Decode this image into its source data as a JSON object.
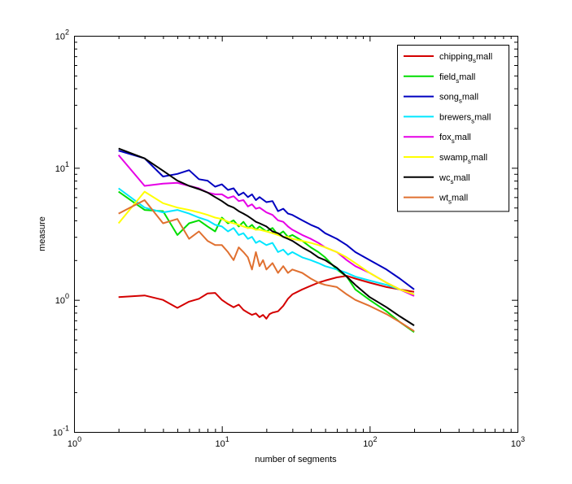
{
  "chart_data": {
    "type": "line",
    "xlabel": "number of segments",
    "ylabel": "measure",
    "xscale": "log",
    "yscale": "log",
    "xlim": [
      1,
      1000
    ],
    "ylim": [
      0.1,
      100
    ],
    "grid": false,
    "legend_position": "top-right",
    "x_ticks": [
      {
        "value": 1,
        "base": "10",
        "exp": "0"
      },
      {
        "value": 10,
        "base": "10",
        "exp": "1"
      },
      {
        "value": 100,
        "base": "10",
        "exp": "2"
      },
      {
        "value": 1000,
        "base": "10",
        "exp": "3"
      }
    ],
    "y_ticks": [
      {
        "value": 0.1,
        "base": "10",
        "exp": "-1"
      },
      {
        "value": 1,
        "base": "10",
        "exp": "0"
      },
      {
        "value": 10,
        "base": "10",
        "exp": "1"
      },
      {
        "value": 100,
        "base": "10",
        "exp": "2"
      }
    ],
    "series": [
      {
        "name": "chipping_small",
        "label_main": "chipping",
        "label_sub": "s",
        "label_rest": "mall",
        "color": "#d40000",
        "points": [
          [
            2,
            1.05
          ],
          [
            3,
            1.08
          ],
          [
            4,
            1.0
          ],
          [
            5,
            0.87
          ],
          [
            6,
            0.97
          ],
          [
            7,
            1.02
          ],
          [
            8,
            1.12
          ],
          [
            9,
            1.13
          ],
          [
            10,
            1.0
          ],
          [
            11,
            0.93
          ],
          [
            12,
            0.88
          ],
          [
            13,
            0.92
          ],
          [
            14,
            0.84
          ],
          [
            15,
            0.8
          ],
          [
            16,
            0.77
          ],
          [
            17,
            0.79
          ],
          [
            18,
            0.74
          ],
          [
            19,
            0.77
          ],
          [
            20,
            0.72
          ],
          [
            21,
            0.78
          ],
          [
            22,
            0.8
          ],
          [
            24,
            0.82
          ],
          [
            26,
            0.9
          ],
          [
            28,
            1.02
          ],
          [
            30,
            1.1
          ],
          [
            35,
            1.2
          ],
          [
            40,
            1.28
          ],
          [
            45,
            1.35
          ],
          [
            50,
            1.4
          ],
          [
            60,
            1.48
          ],
          [
            70,
            1.52
          ],
          [
            80,
            1.45
          ],
          [
            100,
            1.35
          ],
          [
            130,
            1.25
          ],
          [
            160,
            1.2
          ],
          [
            200,
            1.15
          ]
        ]
      },
      {
        "name": "field_small",
        "label_main": "field",
        "label_sub": "s",
        "label_rest": "mall",
        "color": "#00dd00",
        "points": [
          [
            2,
            6.6
          ],
          [
            3,
            4.8
          ],
          [
            4,
            4.7
          ],
          [
            5,
            3.1
          ],
          [
            6,
            3.8
          ],
          [
            7,
            4.0
          ],
          [
            8,
            3.6
          ],
          [
            9,
            3.3
          ],
          [
            10,
            4.2
          ],
          [
            11,
            3.8
          ],
          [
            12,
            4.0
          ],
          [
            13,
            3.6
          ],
          [
            14,
            3.9
          ],
          [
            15,
            3.5
          ],
          [
            16,
            3.7
          ],
          [
            17,
            3.4
          ],
          [
            18,
            3.6
          ],
          [
            20,
            3.3
          ],
          [
            22,
            3.5
          ],
          [
            24,
            3.1
          ],
          [
            26,
            3.3
          ],
          [
            28,
            3.0
          ],
          [
            30,
            3.1
          ],
          [
            35,
            2.8
          ],
          [
            40,
            2.5
          ],
          [
            45,
            2.3
          ],
          [
            50,
            2.1
          ],
          [
            60,
            1.7
          ],
          [
            70,
            1.5
          ],
          [
            80,
            1.2
          ],
          [
            100,
            1.0
          ],
          [
            130,
            0.82
          ],
          [
            160,
            0.68
          ],
          [
            200,
            0.57
          ]
        ]
      },
      {
        "name": "song_small",
        "label_main": "song",
        "label_sub": "s",
        "label_rest": "mall",
        "color": "#0000c0",
        "points": [
          [
            2,
            13.5
          ],
          [
            3,
            11.8
          ],
          [
            4,
            8.6
          ],
          [
            5,
            9.0
          ],
          [
            6,
            9.6
          ],
          [
            7,
            8.2
          ],
          [
            8,
            8.0
          ],
          [
            9,
            7.2
          ],
          [
            10,
            7.5
          ],
          [
            11,
            6.8
          ],
          [
            12,
            7.0
          ],
          [
            13,
            6.2
          ],
          [
            14,
            6.5
          ],
          [
            15,
            6.0
          ],
          [
            16,
            6.3
          ],
          [
            17,
            5.7
          ],
          [
            18,
            6.0
          ],
          [
            20,
            5.5
          ],
          [
            22,
            5.6
          ],
          [
            24,
            4.7
          ],
          [
            26,
            4.9
          ],
          [
            28,
            4.5
          ],
          [
            30,
            4.4
          ],
          [
            35,
            4.0
          ],
          [
            40,
            3.7
          ],
          [
            45,
            3.5
          ],
          [
            50,
            3.2
          ],
          [
            60,
            2.9
          ],
          [
            70,
            2.6
          ],
          [
            80,
            2.3
          ],
          [
            100,
            2.0
          ],
          [
            130,
            1.7
          ],
          [
            160,
            1.45
          ],
          [
            200,
            1.2
          ]
        ]
      },
      {
        "name": "brewers_small",
        "label_main": "brewers",
        "label_sub": "s",
        "label_rest": "mall",
        "color": "#00e6ff",
        "points": [
          [
            2,
            7.0
          ],
          [
            3,
            5.0
          ],
          [
            4,
            4.6
          ],
          [
            5,
            4.8
          ],
          [
            6,
            4.5
          ],
          [
            7,
            4.2
          ],
          [
            8,
            4.0
          ],
          [
            9,
            3.7
          ],
          [
            10,
            3.6
          ],
          [
            11,
            3.3
          ],
          [
            12,
            3.5
          ],
          [
            13,
            3.1
          ],
          [
            14,
            3.2
          ],
          [
            15,
            2.9
          ],
          [
            16,
            3.0
          ],
          [
            17,
            2.7
          ],
          [
            18,
            2.8
          ],
          [
            20,
            2.6
          ],
          [
            22,
            2.7
          ],
          [
            24,
            2.3
          ],
          [
            26,
            2.4
          ],
          [
            28,
            2.2
          ],
          [
            30,
            2.3
          ],
          [
            35,
            2.1
          ],
          [
            40,
            2.0
          ],
          [
            45,
            1.9
          ],
          [
            50,
            1.8
          ],
          [
            60,
            1.7
          ],
          [
            70,
            1.6
          ],
          [
            80,
            1.5
          ],
          [
            100,
            1.4
          ],
          [
            130,
            1.3
          ],
          [
            160,
            1.2
          ],
          [
            200,
            1.1
          ]
        ]
      },
      {
        "name": "fox_small",
        "label_main": "fox",
        "label_sub": "s",
        "label_rest": "mall",
        "color": "#e600e6",
        "points": [
          [
            2,
            12.5
          ],
          [
            3,
            7.3
          ],
          [
            4,
            7.6
          ],
          [
            5,
            7.7
          ],
          [
            6,
            7.3
          ],
          [
            7,
            7.0
          ],
          [
            8,
            6.5
          ],
          [
            9,
            6.3
          ],
          [
            10,
            6.3
          ],
          [
            11,
            5.9
          ],
          [
            12,
            6.1
          ],
          [
            13,
            5.6
          ],
          [
            14,
            5.7
          ],
          [
            15,
            5.1
          ],
          [
            16,
            5.3
          ],
          [
            17,
            4.9
          ],
          [
            18,
            5.0
          ],
          [
            20,
            4.6
          ],
          [
            22,
            4.4
          ],
          [
            24,
            4.0
          ],
          [
            26,
            3.9
          ],
          [
            28,
            3.6
          ],
          [
            30,
            3.4
          ],
          [
            35,
            3.1
          ],
          [
            40,
            2.9
          ],
          [
            45,
            2.7
          ],
          [
            50,
            2.5
          ],
          [
            60,
            2.3
          ],
          [
            70,
            2.0
          ],
          [
            80,
            1.8
          ],
          [
            100,
            1.6
          ],
          [
            130,
            1.35
          ],
          [
            160,
            1.2
          ],
          [
            200,
            1.07
          ]
        ]
      },
      {
        "name": "swamp_small",
        "label_main": "swamp",
        "label_sub": "s",
        "label_rest": "mall",
        "color": "#ffff00",
        "points": [
          [
            2,
            3.8
          ],
          [
            3,
            6.6
          ],
          [
            4,
            5.4
          ],
          [
            5,
            5.0
          ],
          [
            6,
            4.8
          ],
          [
            7,
            4.6
          ],
          [
            8,
            4.4
          ],
          [
            9,
            4.2
          ],
          [
            10,
            4.1
          ],
          [
            11,
            3.9
          ],
          [
            12,
            3.8
          ],
          [
            13,
            3.7
          ],
          [
            14,
            3.6
          ],
          [
            15,
            3.5
          ],
          [
            16,
            3.5
          ],
          [
            17,
            3.4
          ],
          [
            18,
            3.4
          ],
          [
            20,
            3.3
          ],
          [
            22,
            3.2
          ],
          [
            24,
            3.1
          ],
          [
            26,
            3.0
          ],
          [
            28,
            3.0
          ],
          [
            30,
            2.9
          ],
          [
            35,
            2.8
          ],
          [
            40,
            2.7
          ],
          [
            45,
            2.6
          ],
          [
            50,
            2.5
          ],
          [
            60,
            2.3
          ],
          [
            70,
            2.1
          ],
          [
            80,
            1.9
          ],
          [
            100,
            1.6
          ],
          [
            130,
            1.35
          ],
          [
            160,
            1.2
          ],
          [
            200,
            1.1
          ]
        ]
      },
      {
        "name": "wc_small",
        "label_main": "wc",
        "label_sub": "s",
        "label_rest": "mall",
        "color": "#000000",
        "points": [
          [
            2,
            14.0
          ],
          [
            3,
            11.8
          ],
          [
            4,
            9.5
          ],
          [
            5,
            8.0
          ],
          [
            6,
            7.3
          ],
          [
            7,
            6.9
          ],
          [
            8,
            6.5
          ],
          [
            9,
            6.0
          ],
          [
            10,
            5.6
          ],
          [
            11,
            5.2
          ],
          [
            12,
            5.0
          ],
          [
            13,
            4.7
          ],
          [
            14,
            4.5
          ],
          [
            15,
            4.3
          ],
          [
            16,
            4.1
          ],
          [
            17,
            3.9
          ],
          [
            18,
            3.8
          ],
          [
            20,
            3.6
          ],
          [
            22,
            3.3
          ],
          [
            24,
            3.2
          ],
          [
            26,
            3.0
          ],
          [
            28,
            2.9
          ],
          [
            30,
            2.8
          ],
          [
            35,
            2.5
          ],
          [
            40,
            2.3
          ],
          [
            45,
            2.1
          ],
          [
            50,
            2.0
          ],
          [
            60,
            1.75
          ],
          [
            70,
            1.5
          ],
          [
            80,
            1.3
          ],
          [
            100,
            1.05
          ],
          [
            130,
            0.88
          ],
          [
            160,
            0.75
          ],
          [
            200,
            0.64
          ]
        ]
      },
      {
        "name": "wt_small",
        "label_main": "wt",
        "label_sub": "s",
        "label_rest": "mall",
        "color": "#e07030",
        "points": [
          [
            2,
            4.5
          ],
          [
            3,
            5.7
          ],
          [
            4,
            3.8
          ],
          [
            5,
            4.1
          ],
          [
            6,
            2.9
          ],
          [
            7,
            3.3
          ],
          [
            8,
            2.8
          ],
          [
            9,
            2.6
          ],
          [
            10,
            2.6
          ],
          [
            11,
            2.3
          ],
          [
            12,
            2.0
          ],
          [
            13,
            2.5
          ],
          [
            14,
            2.3
          ],
          [
            15,
            2.1
          ],
          [
            16,
            1.7
          ],
          [
            17,
            2.3
          ],
          [
            18,
            1.8
          ],
          [
            19,
            2.0
          ],
          [
            20,
            1.7
          ],
          [
            22,
            1.9
          ],
          [
            24,
            1.6
          ],
          [
            26,
            1.8
          ],
          [
            28,
            1.6
          ],
          [
            30,
            1.7
          ],
          [
            35,
            1.6
          ],
          [
            40,
            1.45
          ],
          [
            45,
            1.35
          ],
          [
            50,
            1.3
          ],
          [
            60,
            1.25
          ],
          [
            70,
            1.1
          ],
          [
            80,
            1.0
          ],
          [
            100,
            0.9
          ],
          [
            130,
            0.78
          ],
          [
            160,
            0.68
          ],
          [
            200,
            0.58
          ]
        ]
      }
    ]
  }
}
